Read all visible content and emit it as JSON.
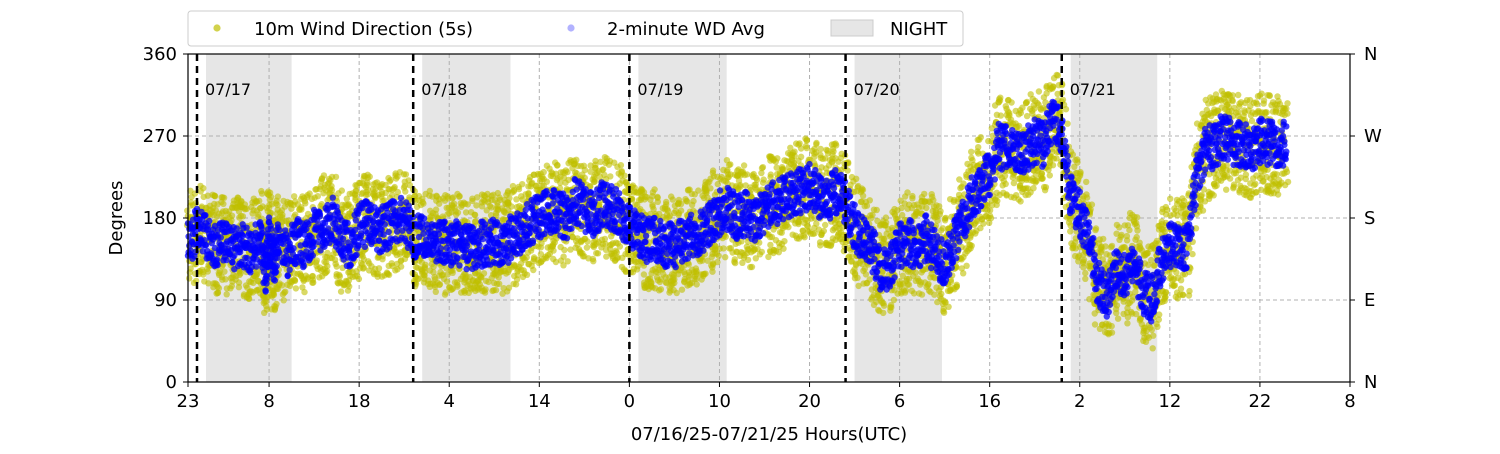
{
  "chart_data": {
    "type": "scatter",
    "title": "",
    "xlabel": "07/16/25-07/21/25  Hours(UTC)",
    "ylabel": "Degrees",
    "x_unit": "hours since 07/16 23:00 UTC",
    "xlim": [
      0,
      129
    ],
    "ylim": [
      0,
      360
    ],
    "x_ticks": [
      {
        "label": "23",
        "value": 0
      },
      {
        "label": "8",
        "value": 9
      },
      {
        "label": "18",
        "value": 19
      },
      {
        "label": "4",
        "value": 29
      },
      {
        "label": "14",
        "value": 39
      },
      {
        "label": "0",
        "value": 49
      },
      {
        "label": "10",
        "value": 59
      },
      {
        "label": "20",
        "value": 69
      },
      {
        "label": "6",
        "value": 79
      },
      {
        "label": "16",
        "value": 89
      },
      {
        "label": "2",
        "value": 99
      },
      {
        "label": "12",
        "value": 109
      },
      {
        "label": "22",
        "value": 119
      },
      {
        "label": "8",
        "value": 129
      }
    ],
    "y_ticks_left": [
      {
        "label": "0",
        "value": 0
      },
      {
        "label": "90",
        "value": 90
      },
      {
        "label": "180",
        "value": 180
      },
      {
        "label": "270",
        "value": 270
      },
      {
        "label": "360",
        "value": 360
      }
    ],
    "y_ticks_right": [
      {
        "label": "N",
        "value": 0
      },
      {
        "label": "E",
        "value": 90
      },
      {
        "label": "S",
        "value": 180
      },
      {
        "label": "W",
        "value": 270
      },
      {
        "label": "N",
        "value": 360
      }
    ],
    "grid": true,
    "legend_position": "top",
    "legend": [
      {
        "label": "10m Wind Direction (5s)",
        "kind": "marker",
        "color": "#bfbf00"
      },
      {
        "label": "2-minute WD Avg",
        "kind": "marker",
        "color": "#0000ff"
      },
      {
        "label": "NIGHT",
        "kind": "patch",
        "color": "#e6e6e6"
      }
    ],
    "day_markers": [
      {
        "label": "07/17",
        "x": 1
      },
      {
        "label": "07/18",
        "x": 25
      },
      {
        "label": "07/19",
        "x": 49
      },
      {
        "label": "07/20",
        "x": 73
      },
      {
        "label": "07/21",
        "x": 97
      }
    ],
    "night_spans": [
      [
        2,
        11.5
      ],
      [
        26,
        35.8
      ],
      [
        50,
        59.8
      ],
      [
        74,
        83.7
      ],
      [
        98,
        107.6
      ]
    ],
    "series": [
      {
        "name": "2-minute WD Avg",
        "color": "#0000ff",
        "points": [
          [
            0,
            155
          ],
          [
            1,
            165
          ],
          [
            2,
            160
          ],
          [
            3,
            150
          ],
          [
            4,
            152
          ],
          [
            5,
            148
          ],
          [
            6,
            150
          ],
          [
            7,
            145
          ],
          [
            8,
            155
          ],
          [
            8.6,
            120
          ],
          [
            9,
            160
          ],
          [
            9.5,
            130
          ],
          [
            10,
            150
          ],
          [
            11,
            140
          ],
          [
            12,
            155
          ],
          [
            13,
            150
          ],
          [
            14,
            165
          ],
          [
            15,
            170
          ],
          [
            16,
            180
          ],
          [
            17,
            155
          ],
          [
            18,
            150
          ],
          [
            19,
            170
          ],
          [
            20,
            175
          ],
          [
            21,
            165
          ],
          [
            22,
            170
          ],
          [
            23,
            175
          ],
          [
            24,
            180
          ],
          [
            25,
            160
          ],
          [
            26,
            158
          ],
          [
            27,
            155
          ],
          [
            28,
            152
          ],
          [
            29,
            150
          ],
          [
            30,
            152
          ],
          [
            31,
            148
          ],
          [
            32,
            150
          ],
          [
            33,
            152
          ],
          [
            34,
            155
          ],
          [
            35,
            150
          ],
          [
            36,
            160
          ],
          [
            37,
            165
          ],
          [
            38,
            175
          ],
          [
            39,
            180
          ],
          [
            40,
            190
          ],
          [
            41,
            185
          ],
          [
            42,
            180
          ],
          [
            43,
            200
          ],
          [
            44,
            190
          ],
          [
            45,
            185
          ],
          [
            46,
            195
          ],
          [
            47,
            190
          ],
          [
            48,
            185
          ],
          [
            49,
            170
          ],
          [
            50,
            160
          ],
          [
            51,
            155
          ],
          [
            52,
            158
          ],
          [
            53,
            150
          ],
          [
            54,
            150
          ],
          [
            55,
            155
          ],
          [
            56,
            160
          ],
          [
            57,
            165
          ],
          [
            58,
            175
          ],
          [
            59,
            185
          ],
          [
            60,
            190
          ],
          [
            61,
            180
          ],
          [
            62,
            185
          ],
          [
            63,
            175
          ],
          [
            64,
            190
          ],
          [
            65,
            195
          ],
          [
            66,
            200
          ],
          [
            67,
            205
          ],
          [
            68,
            210
          ],
          [
            69,
            215
          ],
          [
            70,
            205
          ],
          [
            71,
            200
          ],
          [
            72,
            210
          ],
          [
            73,
            195
          ],
          [
            74,
            170
          ],
          [
            75,
            155
          ],
          [
            76,
            145
          ],
          [
            77,
            120
          ],
          [
            78,
            130
          ],
          [
            79,
            150
          ],
          [
            80,
            155
          ],
          [
            81,
            145
          ],
          [
            82,
            160
          ],
          [
            83,
            140
          ],
          [
            84,
            130
          ],
          [
            85,
            150
          ],
          [
            86,
            175
          ],
          [
            87,
            200
          ],
          [
            88,
            215
          ],
          [
            89,
            230
          ],
          [
            90,
            260
          ],
          [
            91,
            255
          ],
          [
            92,
            250
          ],
          [
            93,
            255
          ],
          [
            94,
            265
          ],
          [
            95,
            260
          ],
          [
            96,
            290
          ],
          [
            97,
            275
          ],
          [
            98,
            205
          ],
          [
            99,
            185
          ],
          [
            100,
            160
          ],
          [
            101,
            110
          ],
          [
            102,
            95
          ],
          [
            103,
            120
          ],
          [
            104,
            115
          ],
          [
            105,
            135
          ],
          [
            106,
            100
          ],
          [
            107,
            90
          ],
          [
            108,
            130
          ],
          [
            109,
            150
          ],
          [
            110,
            145
          ],
          [
            111,
            150
          ],
          [
            112,
            230
          ],
          [
            113,
            255
          ],
          [
            114,
            260
          ],
          [
            115,
            270
          ],
          [
            116,
            262
          ],
          [
            117,
            260
          ],
          [
            118,
            255
          ],
          [
            119,
            265
          ],
          [
            120,
            262
          ],
          [
            121,
            258
          ],
          [
            122,
            262
          ]
        ]
      }
    ]
  }
}
